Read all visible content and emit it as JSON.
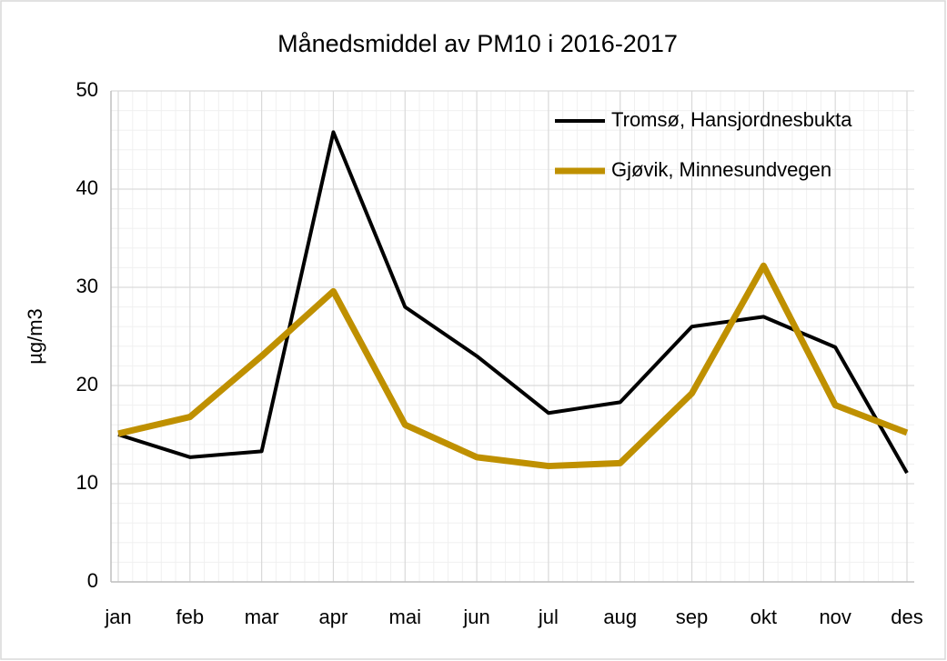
{
  "chart_data": {
    "type": "line",
    "title": "Månedsmiddel av PM10 i 2016-2017",
    "y_label": "µg/m3",
    "categories": [
      "jan",
      "feb",
      "mar",
      "apr",
      "mai",
      "jun",
      "jul",
      "aug",
      "sep",
      "okt",
      "nov",
      "des"
    ],
    "series": [
      {
        "name": "Tromsø, Hansjordnesbukta",
        "color": "#000000",
        "width": 4,
        "values": [
          15,
          12.7,
          13.3,
          45.8,
          28,
          23,
          17.2,
          18.3,
          26,
          27,
          23.9,
          11.1
        ]
      },
      {
        "name": "Gjøvik, Minnesundvegen",
        "color": "#bf9000",
        "width": 7,
        "values": [
          15.1,
          16.8,
          23,
          29.6,
          16,
          12.7,
          11.8,
          12.1,
          19.2,
          32.2,
          18,
          15.2
        ]
      }
    ],
    "ylim": [
      0,
      50
    ],
    "yticks": [
      0,
      10,
      20,
      30,
      40,
      50
    ],
    "grid": true,
    "legend": "upper right"
  }
}
